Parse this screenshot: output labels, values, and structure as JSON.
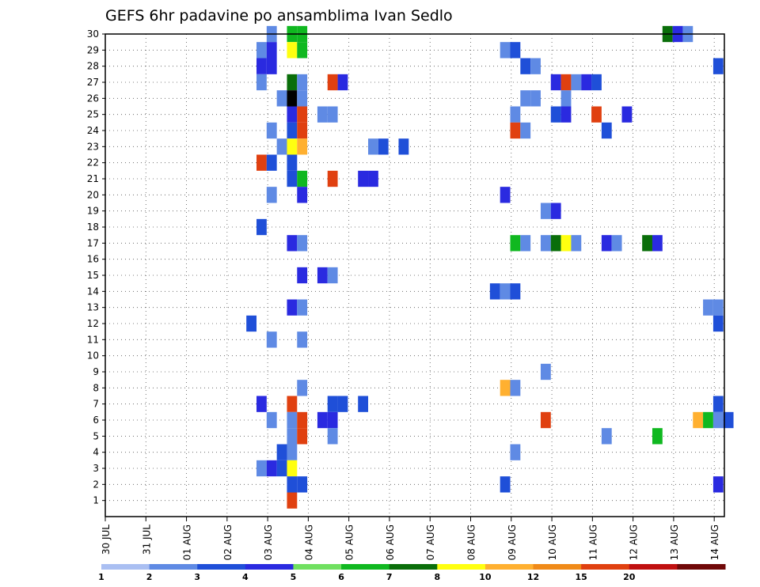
{
  "chart_data": {
    "type": "heatmap",
    "title": "GEFS 6hr padavine po ansamblima Ivan Sedlo",
    "y_ticks": [
      "1",
      "2",
      "3",
      "4",
      "5",
      "6",
      "7",
      "8",
      "9",
      "10",
      "11",
      "12",
      "13",
      "14",
      "15",
      "16",
      "17",
      "18",
      "19",
      "20",
      "21",
      "22",
      "23",
      "24",
      "25",
      "26",
      "27",
      "28",
      "29",
      "30"
    ],
    "x_ticks": [
      "30 JUL",
      "31 JUL",
      "01 AUG",
      "02 AUG",
      "03 AUG",
      "04 AUG",
      "05 AUG",
      "06 AUG",
      "07 AUG",
      "08 AUG",
      "09 AUG",
      "10 AUG",
      "11 AUG",
      "12 AUG",
      "13 AUG",
      "14 AUG"
    ],
    "x_range_days": [
      0,
      15.25
    ],
    "y_range": [
      0,
      30
    ],
    "grid": true,
    "colorbar": {
      "labels": [
        "1",
        "2",
        "3",
        "4",
        "5",
        "6",
        "7",
        "8",
        "10",
        "12",
        "15",
        "20"
      ],
      "colors": [
        "#aabff2",
        "#5f8ae4",
        "#1f4fd8",
        "#2a2ae0",
        "#70e060",
        "#10b820",
        "#0a6e0a",
        "#ffff10",
        "#ffb030",
        "#f08a18",
        "#e04010",
        "#c01010",
        "#700808"
      ]
    },
    "cells": [
      [
        4.1,
        30,
        1
      ],
      [
        4.6,
        30,
        5
      ],
      [
        4.85,
        30,
        5
      ],
      [
        13.85,
        30,
        6
      ],
      [
        14.1,
        30,
        3
      ],
      [
        14.35,
        30,
        1
      ],
      [
        3.85,
        29,
        1
      ],
      [
        4.1,
        29,
        3
      ],
      [
        4.6,
        29,
        7
      ],
      [
        4.85,
        29,
        5
      ],
      [
        9.85,
        29,
        1
      ],
      [
        10.1,
        29,
        2
      ],
      [
        3.85,
        28,
        3
      ],
      [
        4.1,
        28,
        3
      ],
      [
        10.35,
        28,
        2
      ],
      [
        10.6,
        28,
        1
      ],
      [
        15.1,
        28,
        2
      ],
      [
        3.85,
        27,
        1
      ],
      [
        4.6,
        27,
        6
      ],
      [
        4.85,
        27,
        1
      ],
      [
        5.6,
        27,
        10
      ],
      [
        5.85,
        27,
        3
      ],
      [
        11.1,
        27,
        3
      ],
      [
        11.35,
        27,
        10
      ],
      [
        11.6,
        27,
        1
      ],
      [
        11.85,
        27,
        3
      ],
      [
        12.1,
        27,
        2
      ],
      [
        4.35,
        26,
        1
      ],
      [
        4.6,
        26,
        13
      ],
      [
        4.85,
        26,
        1
      ],
      [
        10.35,
        26,
        1
      ],
      [
        10.6,
        26,
        1
      ],
      [
        11.35,
        26,
        1
      ],
      [
        4.6,
        25,
        3
      ],
      [
        4.85,
        25,
        10
      ],
      [
        5.35,
        25,
        1
      ],
      [
        5.6,
        25,
        1
      ],
      [
        10.1,
        25,
        1
      ],
      [
        11.1,
        25,
        2
      ],
      [
        11.35,
        25,
        3
      ],
      [
        12.1,
        25,
        10
      ],
      [
        12.85,
        25,
        3
      ],
      [
        4.1,
        24,
        1
      ],
      [
        4.6,
        24,
        2
      ],
      [
        4.85,
        24,
        10
      ],
      [
        10.1,
        24,
        10
      ],
      [
        10.35,
        24,
        1
      ],
      [
        12.35,
        24,
        2
      ],
      [
        4.35,
        23,
        1
      ],
      [
        4.6,
        23,
        7
      ],
      [
        4.85,
        23,
        8
      ],
      [
        6.6,
        23,
        1
      ],
      [
        6.85,
        23,
        2
      ],
      [
        7.35,
        23,
        2
      ],
      [
        3.85,
        22,
        10
      ],
      [
        4.1,
        22,
        2
      ],
      [
        4.6,
        22,
        2
      ],
      [
        4.6,
        21,
        2
      ],
      [
        4.85,
        21,
        5
      ],
      [
        5.6,
        21,
        10
      ],
      [
        6.35,
        21,
        3
      ],
      [
        6.6,
        21,
        3
      ],
      [
        4.1,
        20,
        1
      ],
      [
        4.85,
        20,
        3
      ],
      [
        9.85,
        20,
        3
      ],
      [
        10.85,
        19,
        1
      ],
      [
        11.1,
        19,
        3
      ],
      [
        3.85,
        18,
        2
      ],
      [
        4.6,
        17,
        3
      ],
      [
        4.85,
        17,
        1
      ],
      [
        10.1,
        17,
        5
      ],
      [
        10.35,
        17,
        1
      ],
      [
        10.85,
        17,
        1
      ],
      [
        11.1,
        17,
        6
      ],
      [
        11.35,
        17,
        7
      ],
      [
        11.6,
        17,
        1
      ],
      [
        12.35,
        17,
        3
      ],
      [
        12.6,
        17,
        1
      ],
      [
        13.35,
        17,
        6
      ],
      [
        13.6,
        17,
        3
      ],
      [
        4.85,
        15,
        3
      ],
      [
        5.35,
        15,
        3
      ],
      [
        5.6,
        15,
        1
      ],
      [
        9.6,
        14,
        2
      ],
      [
        9.85,
        14,
        1
      ],
      [
        10.1,
        14,
        2
      ],
      [
        4.6,
        13,
        3
      ],
      [
        4.85,
        13,
        1
      ],
      [
        14.85,
        13,
        1
      ],
      [
        15.1,
        13,
        1
      ],
      [
        3.6,
        12,
        2
      ],
      [
        15.1,
        12,
        2
      ],
      [
        4.1,
        11,
        1
      ],
      [
        4.85,
        11,
        1
      ],
      [
        10.85,
        9,
        1
      ],
      [
        4.85,
        8,
        1
      ],
      [
        9.85,
        8,
        8
      ],
      [
        10.1,
        8,
        1
      ],
      [
        3.85,
        7,
        3
      ],
      [
        4.6,
        7,
        10
      ],
      [
        5.6,
        7,
        2
      ],
      [
        5.85,
        7,
        2
      ],
      [
        6.35,
        7,
        2
      ],
      [
        15.1,
        7,
        2
      ],
      [
        4.1,
        6,
        1
      ],
      [
        4.6,
        6,
        1
      ],
      [
        4.85,
        6,
        10
      ],
      [
        5.35,
        6,
        3
      ],
      [
        5.6,
        6,
        3
      ],
      [
        10.85,
        6,
        10
      ],
      [
        14.6,
        6,
        8
      ],
      [
        14.85,
        6,
        5
      ],
      [
        15.1,
        6,
        1
      ],
      [
        15.35,
        6,
        2
      ],
      [
        4.6,
        5,
        1
      ],
      [
        4.85,
        5,
        10
      ],
      [
        5.6,
        5,
        1
      ],
      [
        12.35,
        5,
        1
      ],
      [
        13.6,
        5,
        5
      ],
      [
        4.35,
        4,
        2
      ],
      [
        4.6,
        4,
        1
      ],
      [
        10.1,
        4,
        1
      ],
      [
        3.85,
        3,
        1
      ],
      [
        4.1,
        3,
        3
      ],
      [
        4.35,
        3,
        2
      ],
      [
        4.6,
        3,
        7
      ],
      [
        4.6,
        2,
        2
      ],
      [
        4.85,
        2,
        2
      ],
      [
        9.85,
        2,
        2
      ],
      [
        15.1,
        2,
        3
      ],
      [
        4.6,
        1,
        10
      ]
    ]
  }
}
